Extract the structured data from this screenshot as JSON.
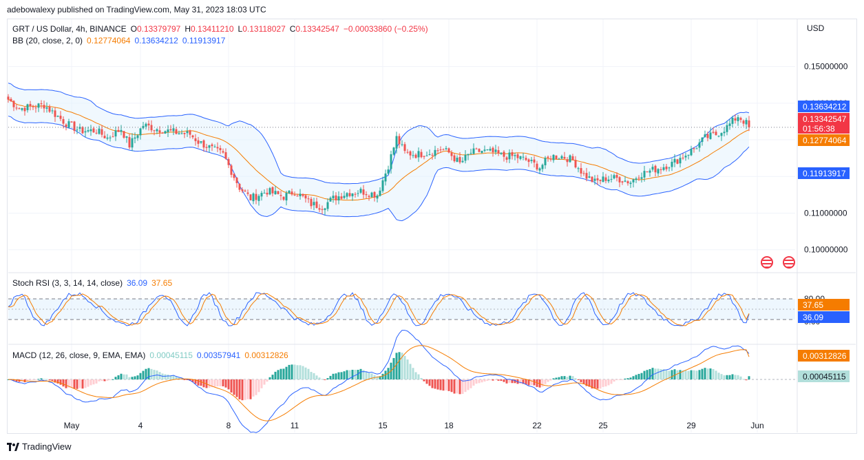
{
  "publisher": "adebowalexy published on TradingView.com, May 31, 2023 18:03 UTC",
  "brand": "TradingView",
  "currency": "USD",
  "colors": {
    "up": "#26a69a",
    "down": "#ef5350",
    "basis": "#f57c00",
    "band": "#2962ff",
    "bandFill": "#e3f2fd"
  },
  "legend": {
    "symbol": "GRT / US Dollar, 4h, BINANCE",
    "o_label": "O",
    "o": "0.13379797",
    "h_label": "H",
    "h": "0.13411210",
    "l_label": "L",
    "l": "0.13118027",
    "c_label": "C",
    "c": "0.13342547",
    "change": "−0.00033860 (−0.25%)",
    "bb_label": "BB (20, close, 2, 0)",
    "bb_basis": "0.12774064",
    "bb_upper": "0.13634212",
    "bb_lower": "0.11913917"
  },
  "stoch_legend": {
    "label": "Stoch RSI (3, 3, 14, 14, close)",
    "k": "36.09",
    "d": "37.65"
  },
  "macd_legend": {
    "label": "MACD (12, 26, close, 9, EMA, EMA)",
    "hist": "0.00045115",
    "macd": "0.00357941",
    "signal": "0.00312826"
  },
  "price_badges": {
    "upper": "0.13634212",
    "close": "0.13342547",
    "countdown": "01:56:38",
    "basis": "0.12774064",
    "lower": "0.11913917"
  },
  "stoch_badges": {
    "d": "37.65",
    "k": "36.09"
  },
  "macd_badges": {
    "signal": "0.00312826",
    "hist": "0.00045115"
  },
  "chart_data": {
    "type": "candlestick",
    "title": "GRT / US Dollar, 4h, BINANCE",
    "y_axis_ticks": [
      "0.15000000",
      "0.14000000",
      "0.11000000",
      "0.10000000"
    ],
    "ylim": [
      0.0945,
      0.1565
    ],
    "x_ticks": [
      {
        "label": "May",
        "i": 23
      },
      {
        "label": "4",
        "i": 48
      },
      {
        "label": "8",
        "i": 80
      },
      {
        "label": "11",
        "i": 104
      },
      {
        "label": "15",
        "i": 136
      },
      {
        "label": "18",
        "i": 160
      },
      {
        "label": "22",
        "i": 192
      },
      {
        "label": "25",
        "i": 216
      },
      {
        "label": "29",
        "i": 248
      },
      {
        "label": "Jun",
        "i": 272
      }
    ],
    "price_anchors": [
      [
        0,
        0.141
      ],
      [
        4,
        0.1385
      ],
      [
        8,
        0.139
      ],
      [
        13,
        0.1395
      ],
      [
        17,
        0.137
      ],
      [
        21,
        0.1345
      ],
      [
        26,
        0.1325
      ],
      [
        32,
        0.1325
      ],
      [
        36,
        0.1305
      ],
      [
        41,
        0.133
      ],
      [
        44,
        0.1285
      ],
      [
        49,
        0.134
      ],
      [
        54,
        0.133
      ],
      [
        61,
        0.132
      ],
      [
        66,
        0.1315
      ],
      [
        69,
        0.1295
      ],
      [
        74,
        0.1275
      ],
      [
        78,
        0.126
      ],
      [
        84,
        0.117
      ],
      [
        88,
        0.114
      ],
      [
        94,
        0.116
      ],
      [
        100,
        0.1145
      ],
      [
        104,
        0.116
      ],
      [
        110,
        0.1125
      ],
      [
        114,
        0.1118
      ],
      [
        118,
        0.114
      ],
      [
        123,
        0.1155
      ],
      [
        128,
        0.116
      ],
      [
        134,
        0.115
      ],
      [
        138,
        0.123
      ],
      [
        141,
        0.1305
      ],
      [
        144,
        0.1265
      ],
      [
        148,
        0.126
      ],
      [
        153,
        0.1265
      ],
      [
        157,
        0.1275
      ],
      [
        160,
        0.1265
      ],
      [
        164,
        0.1235
      ],
      [
        168,
        0.1265
      ],
      [
        172,
        0.127
      ],
      [
        176,
        0.1265
      ],
      [
        180,
        0.1255
      ],
      [
        184,
        0.1255
      ],
      [
        188,
        0.1245
      ],
      [
        193,
        0.1225
      ],
      [
        197,
        0.1255
      ],
      [
        201,
        0.1255
      ],
      [
        205,
        0.1245
      ],
      [
        209,
        0.1205
      ],
      [
        213,
        0.1185
      ],
      [
        217,
        0.1195
      ],
      [
        221,
        0.1195
      ],
      [
        226,
        0.1185
      ],
      [
        229,
        0.1205
      ],
      [
        233,
        0.1215
      ],
      [
        237,
        0.1225
      ],
      [
        241,
        0.1235
      ],
      [
        245,
        0.1255
      ],
      [
        249,
        0.1275
      ],
      [
        253,
        0.1305
      ],
      [
        257,
        0.1315
      ],
      [
        261,
        0.1335
      ],
      [
        265,
        0.1365
      ],
      [
        268,
        0.1345
      ],
      [
        269,
        0.1334
      ]
    ],
    "close": 0.13342547,
    "bollinger": {
      "basis": 0.12774064,
      "upper": 0.13634212,
      "lower": 0.11913917
    },
    "stoch_rsi": {
      "k": 36.09,
      "d": 37.65,
      "levels": [
        80,
        20
      ],
      "ticks": [
        "80.00",
        "0.00"
      ],
      "ylim": [
        0,
        100
      ]
    },
    "macd": {
      "macd": 0.00357941,
      "signal": 0.00312826,
      "histogram": 0.00045115
    }
  }
}
